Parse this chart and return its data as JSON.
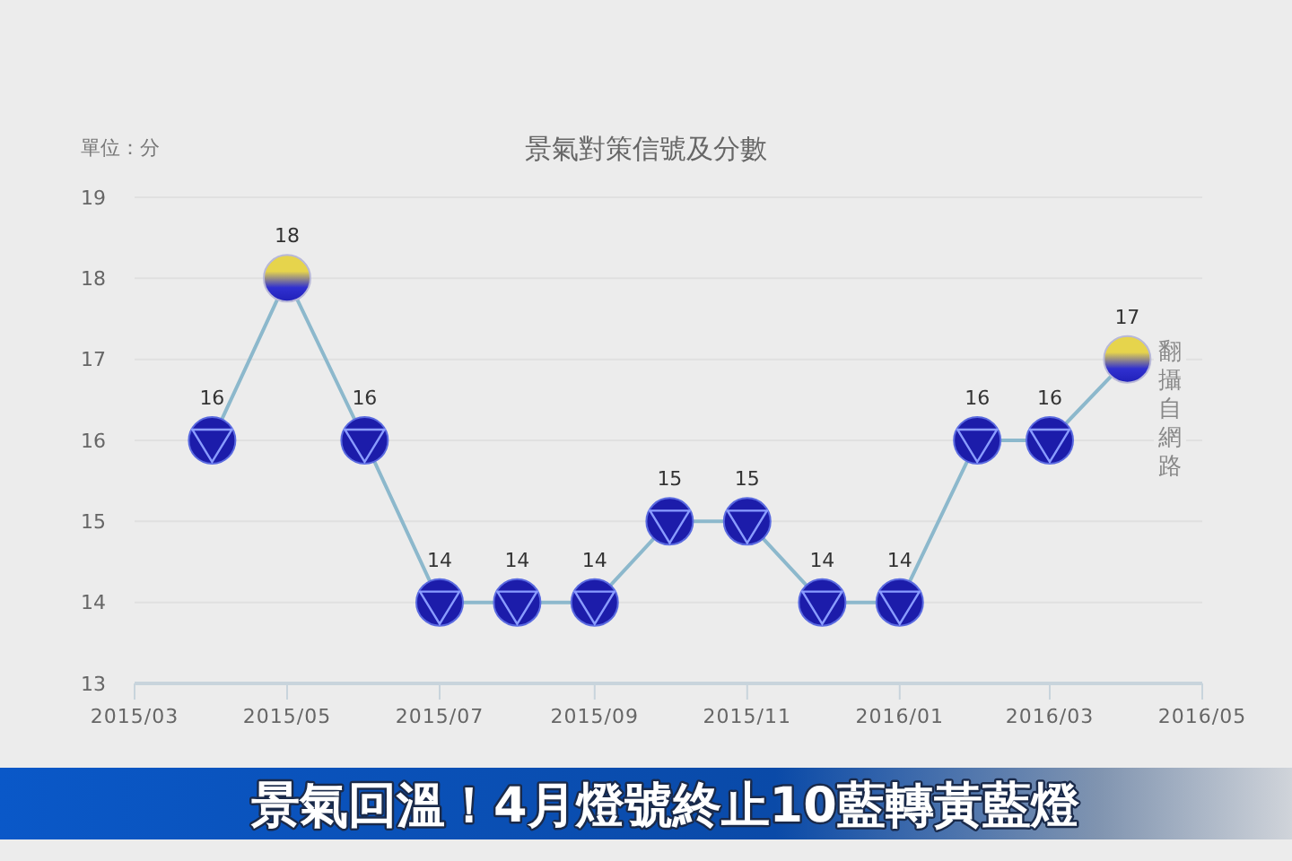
{
  "chart_data": {
    "type": "line",
    "title": "景氣對策信號及分數",
    "ylabel": "單位：分",
    "annotations": [
      "翻攝自網路",
      "景氣回溫！4月燈號終止10藍轉黃藍燈"
    ],
    "x": [
      "2015-04",
      "2015-05",
      "2015-06",
      "2015-07",
      "2015-08",
      "2015-09",
      "2015-10",
      "2015-11",
      "2015-12",
      "2016-01",
      "2016-02",
      "2016-03",
      "2016-04"
    ],
    "values": [
      16,
      18,
      16,
      14,
      14,
      14,
      15,
      15,
      14,
      14,
      16,
      16,
      17
    ],
    "color": "#8cb8cc",
    "colors": [
      "#1c1caa",
      "#e6d44c",
      "#1c1caa",
      "#1c1caa",
      "#1c1caa",
      "#1c1caa",
      "#1c1caa",
      "#1c1caa",
      "#1c1caa",
      "#1c1caa",
      "#1c1caa",
      "#1c1caa",
      "#e6d44c"
    ],
    "xlim": [
      "2015-03",
      "2016-05"
    ],
    "xticks": [
      {
        "value": "2015-03",
        "label": "2015/03"
      },
      {
        "value": "2015-05",
        "label": "2015/05"
      },
      {
        "value": "2015-07",
        "label": "2015/07"
      },
      {
        "value": "2015-09",
        "label": "2015/09"
      },
      {
        "value": "2015-11",
        "label": "2015/11"
      },
      {
        "value": "2016-01",
        "label": "2016/01"
      },
      {
        "value": "2016-03",
        "label": "2016/03"
      },
      {
        "value": "2016-05",
        "label": "2016/05"
      }
    ],
    "ylim": [
      13,
      19
    ],
    "yticks": [
      13,
      14,
      15,
      16,
      17,
      18,
      19
    ],
    "grid": "y",
    "marker": "circle",
    "line_style": "solid",
    "data_labels": true
  }
}
